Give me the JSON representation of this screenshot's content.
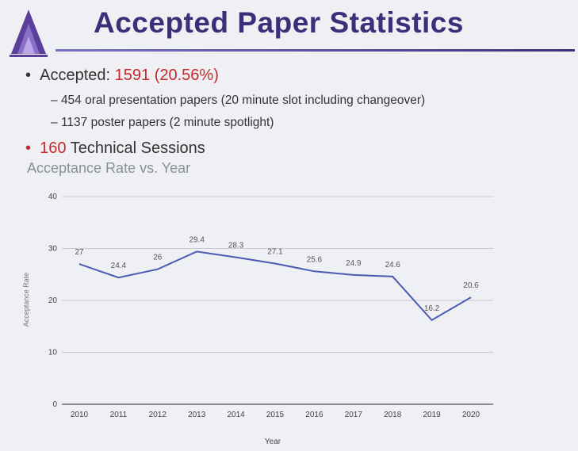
{
  "slide": {
    "title": "Accepted Paper Statistics",
    "bullets": {
      "accepted_label": "Accepted:",
      "accepted_value": "1591 (20.56%)",
      "oral": "454 oral presentation papers (20 minute slot including changeover)",
      "poster": "1137 poster papers (2 minute spotlight)",
      "sessions_value": "160",
      "sessions_label": "Technical Sessions"
    },
    "bullet_glyph": "•",
    "dash_glyph": "–"
  },
  "chart_data": {
    "type": "line",
    "title": "Acceptance Rate vs. Year",
    "xlabel": "Year",
    "ylabel": "Acceptance Rate",
    "ylim": [
      0,
      40
    ],
    "yticks": [
      "0",
      "10",
      "20",
      "30",
      "40"
    ],
    "categories": [
      "2010",
      "2011",
      "2012",
      "2013",
      "2014",
      "2015",
      "2016",
      "2017",
      "2018",
      "2019",
      "2020"
    ],
    "series": [
      {
        "values": [
          27,
          24.4,
          26,
          29.4,
          28.3,
          27.1,
          25.6,
          24.9,
          24.6,
          16.2,
          20.6
        ]
      }
    ],
    "data_labels": [
      "27",
      "24.4",
      "26",
      "29.4",
      "28.3",
      "27.1",
      "25.6",
      "24.9",
      "24.6",
      "16.2",
      "20.6"
    ],
    "grid": true,
    "line_color": "#4a5bb5",
    "grid_color": "#c9ccd3"
  }
}
